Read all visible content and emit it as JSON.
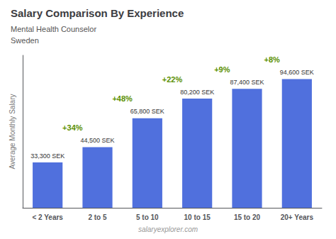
{
  "chart_data": {
    "type": "bar",
    "title": "Salary Comparison By Experience",
    "subtitle": "Mental Health Counselor",
    "country": "Sweden",
    "watermark": "salaryexplorer.com",
    "ylabel": "Average Monthly Salary",
    "categories": [
      "< 2 Years",
      "2 to 5",
      "5 to 10",
      "10 to 15",
      "15 to 20",
      "20+ Years"
    ],
    "values": [
      33300,
      44500,
      65800,
      80200,
      87400,
      94600
    ],
    "value_labels": [
      "33,300 SEK",
      "44,500 SEK",
      "65,800 SEK",
      "80,200 SEK",
      "87,400 SEK",
      "94,600 SEK"
    ],
    "data_labels": true,
    "annotations": [
      "+34%",
      "+48%",
      "+22%",
      "+9%",
      "+8%"
    ],
    "ylim": [
      0,
      112000
    ],
    "tick_labels": "x",
    "grid": false
  }
}
